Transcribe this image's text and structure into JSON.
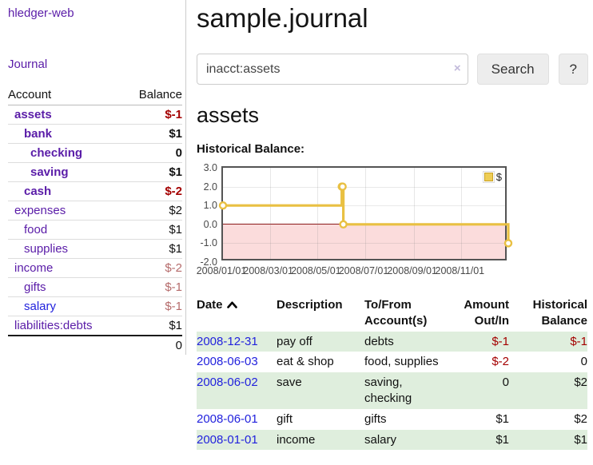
{
  "colors": {
    "purple_link": "#5a1ca8",
    "blue_link": "#2222dd",
    "negative": "#a40000",
    "negative_muted": "#b56b6b",
    "row_stripe_green": "#dfeedd",
    "chart_line": "#e9c042",
    "chart_negative_region": "#fbdcdc",
    "chart_zero_line": "#8b1a1a"
  },
  "sidebar": {
    "brand": "hledger-web",
    "nav_journal": "Journal",
    "header": {
      "account": "Account",
      "balance": "Balance"
    },
    "accounts": [
      {
        "name": "assets",
        "depth": 1,
        "bold": true,
        "link_color": "purple",
        "balance": "$-1",
        "balance_style": "neg"
      },
      {
        "name": "bank",
        "depth": 2,
        "bold": true,
        "link_color": "purple",
        "balance": "$1",
        "balance_style": "pos"
      },
      {
        "name": "checking",
        "depth": 3,
        "bold": true,
        "link_color": "purple",
        "balance": "0",
        "balance_style": "pos"
      },
      {
        "name": "saving",
        "depth": 3,
        "bold": true,
        "link_color": "purple",
        "balance": "$1",
        "balance_style": "pos"
      },
      {
        "name": "cash",
        "depth": 2,
        "bold": true,
        "link_color": "purple",
        "balance": "$-2",
        "balance_style": "neg"
      },
      {
        "name": "expenses",
        "depth": 1,
        "bold": false,
        "link_color": "purple",
        "balance": "$2",
        "balance_style": "pos"
      },
      {
        "name": "food",
        "depth": 2,
        "bold": false,
        "link_color": "purple",
        "balance": "$1",
        "balance_style": "pos"
      },
      {
        "name": "supplies",
        "depth": 2,
        "bold": false,
        "link_color": "purple",
        "balance": "$1",
        "balance_style": "pos"
      },
      {
        "name": "income",
        "depth": 1,
        "bold": false,
        "link_color": "purple",
        "balance": "$-2",
        "balance_style": "negm"
      },
      {
        "name": "gifts",
        "depth": 2,
        "bold": false,
        "link_color": "purple",
        "balance": "$-1",
        "balance_style": "negm"
      },
      {
        "name": "salary",
        "depth": 2,
        "bold": false,
        "link_color": "blue",
        "balance": "$-1",
        "balance_style": "negm"
      },
      {
        "name": "liabilities:debts",
        "depth": 1,
        "bold": false,
        "link_color": "purple",
        "balance": "$1",
        "balance_style": "pos"
      }
    ],
    "total": "0"
  },
  "main": {
    "title": "sample.journal",
    "search": {
      "value": "inacct:assets",
      "clear_icon": "×",
      "button_label": "Search",
      "help_label": "?"
    },
    "account_heading": "assets",
    "chart_title": "Historical Balance:"
  },
  "chart_data": {
    "type": "line",
    "step": true,
    "title": "Historical Balance:",
    "series": [
      {
        "name": "$",
        "x": [
          "2008-01-01",
          "2008-06-01",
          "2008-06-02",
          "2008-06-03",
          "2008-12-31"
        ],
        "values": [
          1,
          2,
          2,
          0,
          -1
        ]
      }
    ],
    "ylim": [
      -2,
      3
    ],
    "xlim": [
      "2008-01-01",
      "2008-12-31"
    ],
    "yticks": [
      "3.0",
      "2.0",
      "1.0",
      "0.0",
      "-1.0",
      "-2.0"
    ],
    "ytick_values": [
      3,
      2,
      1,
      0,
      -1,
      -2
    ],
    "xticks": [
      "2008/01/01",
      "2008/03/01",
      "2008/05/01",
      "2008/07/01",
      "2008/09/01",
      "2008/11/01"
    ],
    "legend": {
      "label": "$",
      "position": "top-right"
    },
    "grid": true
  },
  "register": {
    "headers": {
      "date": "Date",
      "description": "Description",
      "accounts": "To/From Account(s)",
      "amount": "Amount Out/In",
      "balance": "Historical Balance"
    },
    "sort": {
      "column": "date",
      "direction": "asc-icon"
    },
    "rows": [
      {
        "date": "2008-12-31",
        "description": "pay off",
        "accounts": "debts",
        "amount": "$-1",
        "amount_neg": true,
        "balance": "$-1",
        "balance_neg": true,
        "shade": true
      },
      {
        "date": "2008-06-03",
        "description": "eat & shop",
        "accounts": "food, supplies",
        "amount": "$-2",
        "amount_neg": true,
        "balance": "0",
        "balance_neg": false,
        "shade": false
      },
      {
        "date": "2008-06-02",
        "description": "save",
        "accounts": "saving,\nchecking",
        "amount": "0",
        "amount_neg": false,
        "balance": "$2",
        "balance_neg": false,
        "shade": true
      },
      {
        "date": "2008-06-01",
        "description": "gift",
        "accounts": "gifts",
        "amount": "$1",
        "amount_neg": false,
        "balance": "$2",
        "balance_neg": false,
        "shade": false
      },
      {
        "date": "2008-01-01",
        "description": "income",
        "accounts": "salary",
        "amount": "$1",
        "amount_neg": false,
        "balance": "$1",
        "balance_neg": false,
        "shade": true
      }
    ]
  }
}
